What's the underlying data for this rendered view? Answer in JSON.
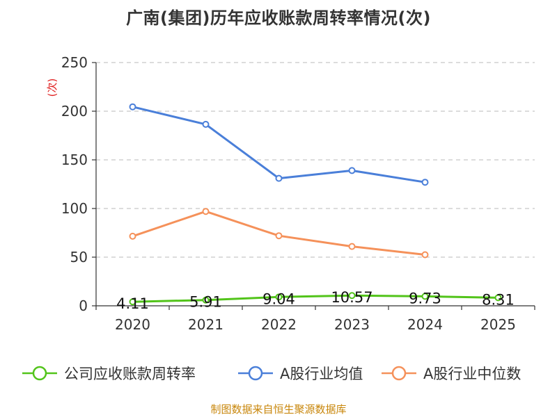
{
  "title": "广南(集团)历年应收账款周转率情况(次)",
  "source": "制图数据来自恒生聚源数据库",
  "chart_data": {
    "type": "line",
    "title": "广南(集团)历年应收账款周转率情况(次)",
    "ylabel": "(次)",
    "xlabel": "",
    "categories": [
      "2020",
      "2021",
      "2022",
      "2023",
      "2024",
      "2025"
    ],
    "ylim": [
      0,
      250
    ],
    "yticks": [
      0,
      50,
      100,
      150,
      200,
      250
    ],
    "grid": true,
    "legend_position": "bottom",
    "series": [
      {
        "name": "公司应收账款周转率",
        "color": "#52c41a",
        "values": [
          4.11,
          5.91,
          9.04,
          10.57,
          9.73,
          8.31
        ],
        "labels": [
          "4.11",
          "5.91",
          "9.04",
          "10.57",
          "9.73",
          "8.31"
        ]
      },
      {
        "name": "A股行业均值",
        "color": "#4a7fd9",
        "values": [
          204.5,
          186.5,
          131,
          139,
          127,
          null
        ]
      },
      {
        "name": "A股行业中位数",
        "color": "#f5915a",
        "values": [
          71.5,
          97,
          72,
          61,
          52.5,
          null
        ]
      }
    ]
  }
}
